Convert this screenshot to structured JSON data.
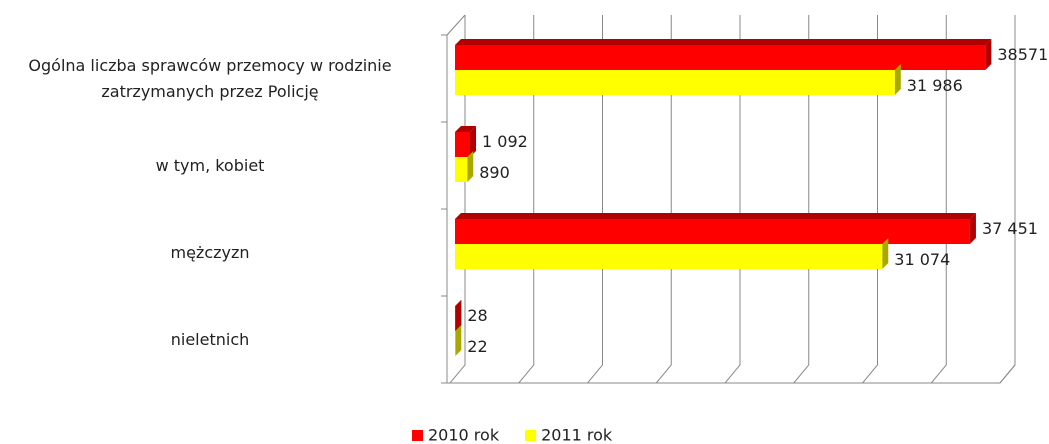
{
  "chart_data": {
    "type": "bar",
    "orientation": "horizontal",
    "categories": [
      "Ogólna liczba sprawców przemocy w rodzinie zatrzymanych przez Policję",
      "w tym, kobiet",
      "mężczyzn",
      "nieletnich"
    ],
    "series": [
      {
        "name": "2010 rok",
        "color": "#ff0000",
        "side_color": "#b00000",
        "values": [
          38571,
          1092,
          37451,
          28
        ],
        "value_labels": [
          "38571",
          "1 092",
          "37 451",
          "28"
        ]
      },
      {
        "name": "2011 rok",
        "color": "#ffff00",
        "side_color": "#a8a800",
        "values": [
          31986,
          890,
          31074,
          22
        ],
        "value_labels": [
          "31 986",
          "890",
          "31 074",
          "22"
        ]
      }
    ],
    "xlim": [
      0,
      40000
    ],
    "xticks": [
      0,
      5000,
      10000,
      15000,
      20000,
      25000,
      30000,
      35000,
      40000
    ],
    "grid": true,
    "legend": "bottom"
  }
}
